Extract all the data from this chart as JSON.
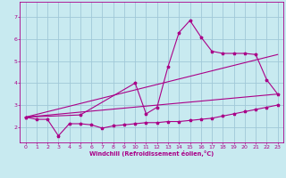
{
  "xlabel": "Windchill (Refroidissement éolien,°C)",
  "bg_color": "#c8eaf0",
  "grid_color": "#a0c8d8",
  "line_color": "#aa0088",
  "spine_color": "#8800aa",
  "xlim": [
    -0.5,
    23.5
  ],
  "ylim": [
    1.3,
    7.7
  ],
  "xticks": [
    0,
    1,
    2,
    3,
    4,
    5,
    6,
    7,
    8,
    9,
    10,
    11,
    12,
    13,
    14,
    15,
    16,
    17,
    18,
    19,
    20,
    21,
    22,
    23
  ],
  "yticks": [
    2,
    3,
    4,
    5,
    6,
    7
  ],
  "line1_x": [
    0,
    1,
    2,
    3,
    4,
    5,
    6,
    7,
    8,
    9,
    10,
    11,
    12,
    13,
    14,
    15,
    16,
    17,
    18,
    19,
    20,
    21,
    22,
    23
  ],
  "line1_y": [
    2.45,
    2.35,
    2.35,
    1.6,
    2.15,
    2.15,
    2.1,
    1.95,
    2.05,
    2.1,
    2.15,
    2.2,
    2.2,
    2.25,
    2.25,
    2.3,
    2.35,
    2.4,
    2.5,
    2.6,
    2.7,
    2.8,
    2.9,
    3.0
  ],
  "line2_x": [
    0,
    5,
    10,
    11,
    12,
    13,
    14,
    15,
    16,
    17,
    18,
    19,
    20,
    21,
    22,
    23
  ],
  "line2_y": [
    2.45,
    2.55,
    4.0,
    2.6,
    2.9,
    4.75,
    6.3,
    6.85,
    6.1,
    5.45,
    5.35,
    5.35,
    5.35,
    5.3,
    4.15,
    3.5
  ],
  "line3_x": [
    0,
    23
  ],
  "line3_y": [
    2.45,
    3.5
  ],
  "line4_x": [
    0,
    23
  ],
  "line4_y": [
    2.45,
    5.3
  ]
}
